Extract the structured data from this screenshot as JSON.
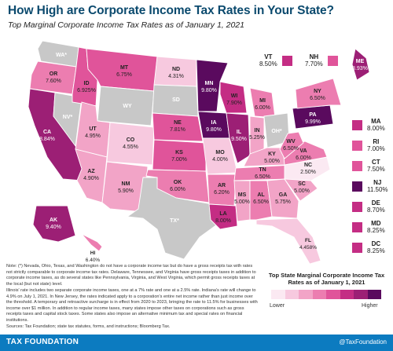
{
  "title": "How High are Corporate Income Tax Rates in Your State?",
  "subtitle": "Top Marginal Corporate Income Tax Rates as of January 1, 2021",
  "colors": {
    "gray": "#c8c8c8",
    "scale": [
      "#fbe9f2",
      "#f7c9df",
      "#f2a4c7",
      "#ec7db0",
      "#e0549a",
      "#c42d84",
      "#9c1f75",
      "#5a0a5e"
    ],
    "title": "#0b4a6e",
    "footer": "#0c7bc0"
  },
  "states": [
    {
      "abbr": "WA*",
      "rate": "",
      "level": -1
    },
    {
      "abbr": "OR",
      "rate": "7.60%",
      "level": 3
    },
    {
      "abbr": "CA",
      "rate": "8.84%",
      "level": 6
    },
    {
      "abbr": "NV*",
      "rate": "",
      "level": -1
    },
    {
      "abbr": "ID",
      "rate": "6.925%",
      "level": 4
    },
    {
      "abbr": "MT",
      "rate": "6.75%",
      "level": 4
    },
    {
      "abbr": "WY",
      "rate": "",
      "level": -1
    },
    {
      "abbr": "UT",
      "rate": "4.95%",
      "level": 2
    },
    {
      "abbr": "AZ",
      "rate": "4.90%",
      "level": 2
    },
    {
      "abbr": "CO",
      "rate": "4.55%",
      "level": 1
    },
    {
      "abbr": "NM",
      "rate": "5.90%",
      "level": 2
    },
    {
      "abbr": "ND",
      "rate": "4.31%",
      "level": 1
    },
    {
      "abbr": "SD",
      "rate": "",
      "level": -1
    },
    {
      "abbr": "NE",
      "rate": "7.81%",
      "level": 4
    },
    {
      "abbr": "KS",
      "rate": "7.00%",
      "level": 4
    },
    {
      "abbr": "OK",
      "rate": "6.00%",
      "level": 3
    },
    {
      "abbr": "TX*",
      "rate": "",
      "level": -1
    },
    {
      "abbr": "MN",
      "rate": "9.80%",
      "level": 7
    },
    {
      "abbr": "IA",
      "rate": "9.80%",
      "level": 7
    },
    {
      "abbr": "MO",
      "rate": "4.00%",
      "level": 1
    },
    {
      "abbr": "AR",
      "rate": "6.20%",
      "level": 3
    },
    {
      "abbr": "LA",
      "rate": "8.00%",
      "level": 5
    },
    {
      "abbr": "WI",
      "rate": "7.90%",
      "level": 5
    },
    {
      "abbr": "IL",
      "rate": "9.50%",
      "level": 6
    },
    {
      "abbr": "MI",
      "rate": "6.00%",
      "level": 3
    },
    {
      "abbr": "IN",
      "rate": "5.25%",
      "level": 2
    },
    {
      "abbr": "OH*",
      "rate": "",
      "level": -1
    },
    {
      "abbr": "KY",
      "rate": "5.00%",
      "level": 2
    },
    {
      "abbr": "TN",
      "rate": "6.50%",
      "level": 3
    },
    {
      "abbr": "MS",
      "rate": "5.00%",
      "level": 2
    },
    {
      "abbr": "AL",
      "rate": "6.50%",
      "level": 3
    },
    {
      "abbr": "GA",
      "rate": "5.75%",
      "level": 2
    },
    {
      "abbr": "FL",
      "rate": "4.458%",
      "level": 1
    },
    {
      "abbr": "SC",
      "rate": "5.00%",
      "level": 2
    },
    {
      "abbr": "NC",
      "rate": "2.50%",
      "level": 0
    },
    {
      "abbr": "VA",
      "rate": "6.00%",
      "level": 3
    },
    {
      "abbr": "WV",
      "rate": "6.50%",
      "level": 3
    },
    {
      "abbr": "PA",
      "rate": "9.99%",
      "level": 7
    },
    {
      "abbr": "NY",
      "rate": "6.50%",
      "level": 3
    },
    {
      "abbr": "ME",
      "rate": "8.93%",
      "level": 6
    },
    {
      "abbr": "AK",
      "rate": "9.40%",
      "level": 6
    },
    {
      "abbr": "HI",
      "rate": "6.40%",
      "level": 3
    }
  ],
  "callouts_top": [
    {
      "abbr": "VT",
      "rate": "8.50%",
      "level": 5
    },
    {
      "abbr": "NH",
      "rate": "7.70%",
      "level": 4
    }
  ],
  "callouts_right": [
    {
      "abbr": "MA",
      "rate": "8.00%",
      "level": 5
    },
    {
      "abbr": "RI",
      "rate": "7.00%",
      "level": 4
    },
    {
      "abbr": "CT",
      "rate": "7.50%",
      "level": 4
    },
    {
      "abbr": "NJ",
      "rate": "11.50%",
      "level": 7
    },
    {
      "abbr": "DE",
      "rate": "8.70%",
      "level": 5
    },
    {
      "abbr": "MD",
      "rate": "8.25%",
      "level": 5
    },
    {
      "abbr": "DC",
      "rate": "8.25%",
      "level": 5
    }
  ],
  "note": {
    "p1": "Note: (*) Nevada, Ohio, Texas, and Washington do not have a corporate income tax but do have a gross receipts tax with rates not strictly comparable to corporate income tax rates. Delaware, Tennessee, and Virginia have gross receipts taxes in addition to corporate income taxes, as do several states like Pennsylvania, Virginia, and West Virginia, which permit gross receipts taxes at the local (but not state) level.",
    "p2": "Illinois' rate includes two separate corporate income taxes, one at a 7% rate and one at a 2.5% rate. Indiana's rate will change to 4.9% on July 1, 2021. In New Jersey, the rates indicated apply to a corporation's entire net income rather than just income over the threshold. A temporary and retroactive surcharge is in effect from 2020 to 2023, bringing the rate to 11.5% for businesses with income over $1 million. In addition to regular income taxes, many states impose other taxes on corporations such as gross receipts taxes and capital stock taxes. Some states also impose an alternative minimum tax and special rates on financial institutions.",
    "sources": "Sources: Tax Foundation; state tax statutes, forms, and instructions; Bloomberg Tax."
  },
  "legend": {
    "title": "Top State Marginal Corporate Income Tax Rates as of January 1, 2021",
    "low": "Lower",
    "high": "Higher"
  },
  "footer": {
    "brand": "TAX FOUNDATION",
    "handle": "@TaxFoundation"
  }
}
